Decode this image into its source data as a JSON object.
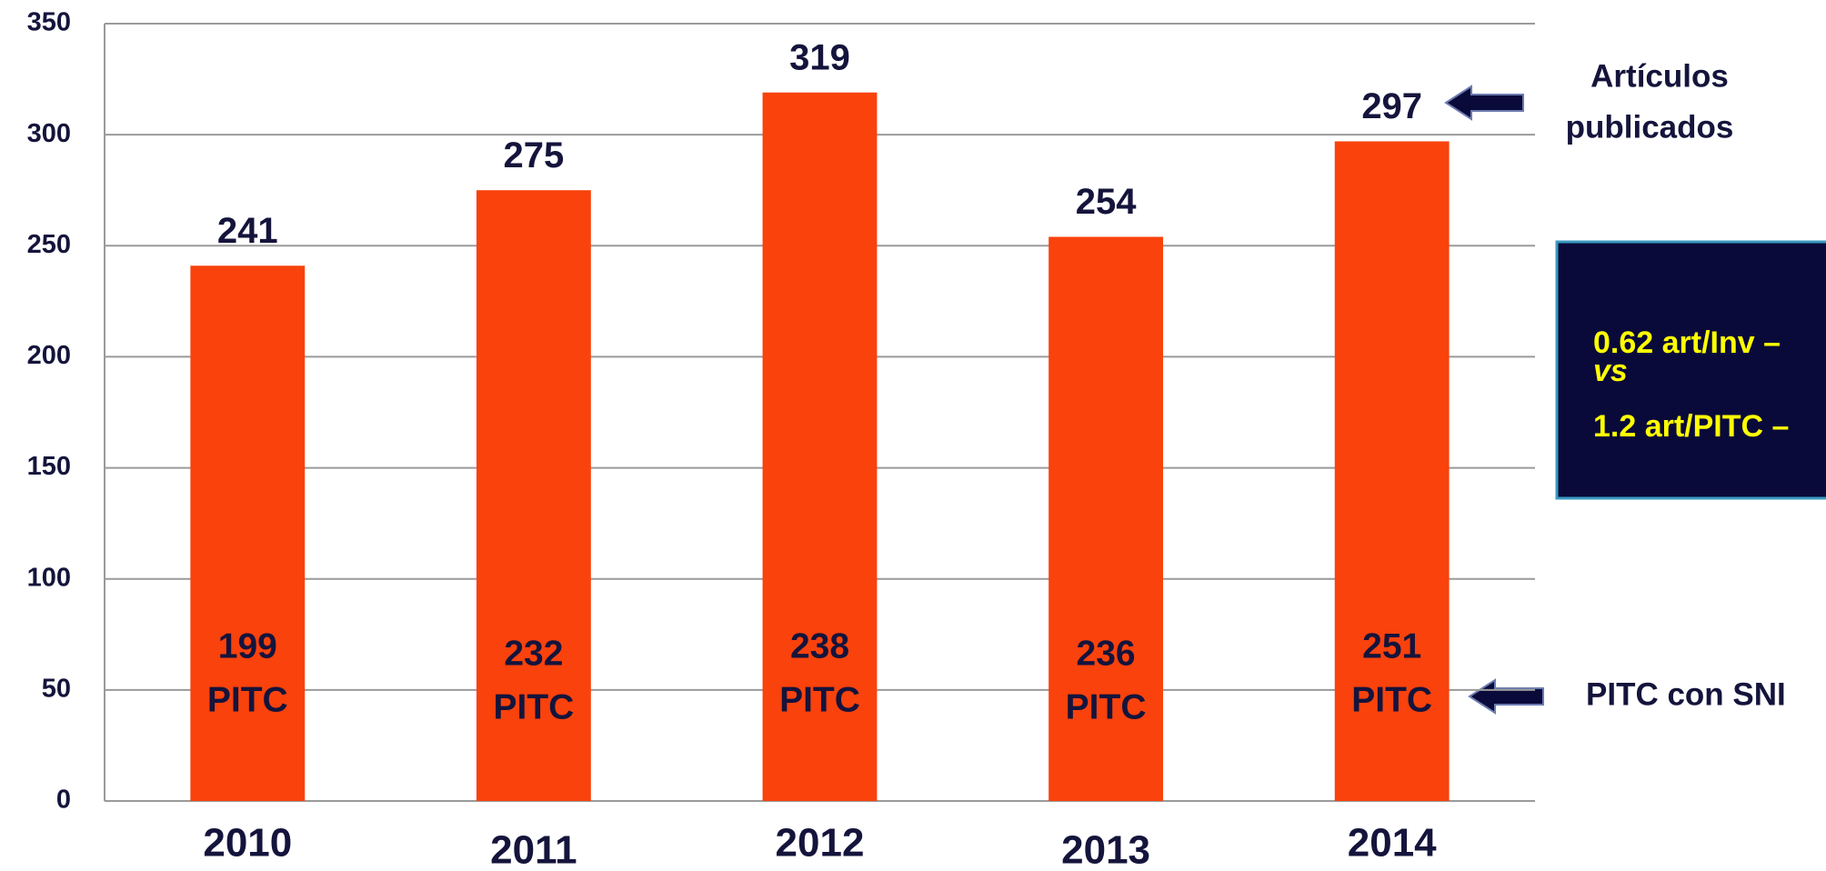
{
  "chart_data": {
    "type": "bar",
    "categories": [
      "2010",
      "2011",
      "2012",
      "2013",
      "2014"
    ],
    "values": [
      241,
      275,
      319,
      254,
      297
    ],
    "color": "#f9420c",
    "ylim": [
      0,
      350
    ],
    "yticks": [
      0,
      50,
      100,
      150,
      200,
      250,
      300,
      350
    ],
    "grid": true,
    "pitc_counts": [
      199,
      232,
      238,
      236,
      251
    ],
    "pitc_label": "PITC",
    "annotations": {
      "articles": [
        "Artículos",
        "publicados"
      ],
      "pitc_sni": "PITC con SNI",
      "box": [
        "0.62 art/Inv –",
        "vs",
        "1.2 art/PITC –"
      ]
    }
  }
}
